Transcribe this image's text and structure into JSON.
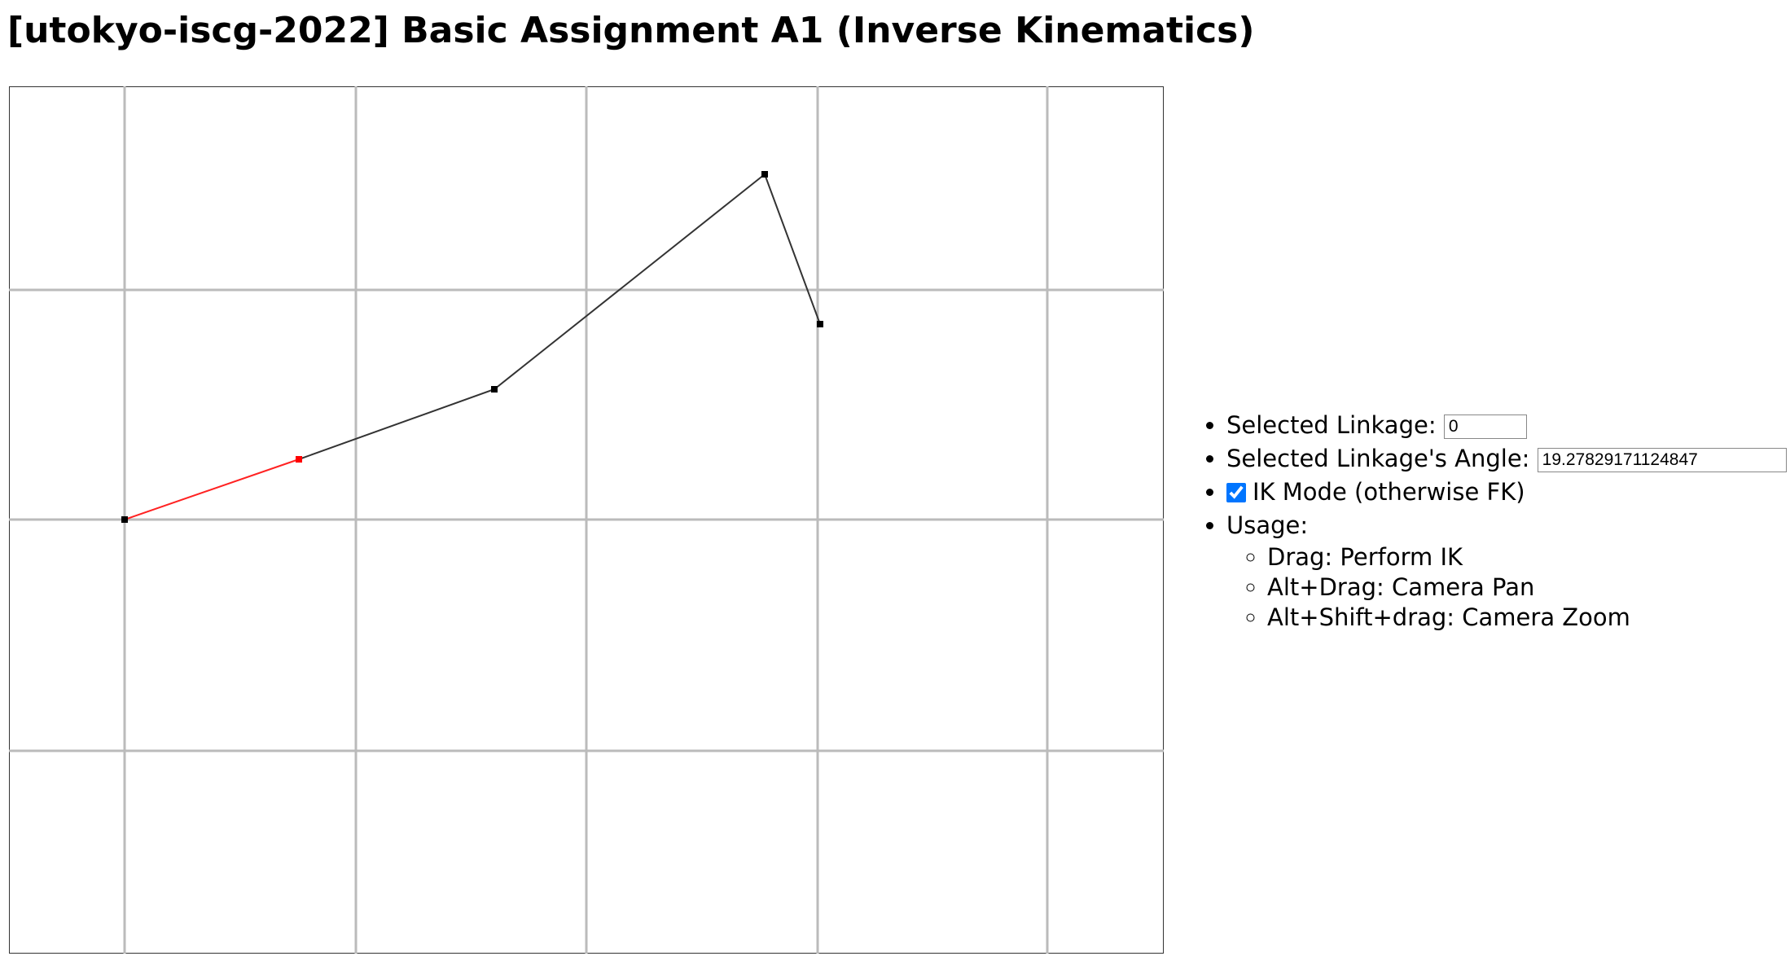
{
  "header": {
    "title": "[utokyo-iscg-2022] Basic Assignment A1 (Inverse Kinematics)"
  },
  "controls": {
    "selected_linkage": {
      "label": "Selected Linkage:",
      "value": "0"
    },
    "selected_angle": {
      "label": "Selected Linkage's Angle:",
      "value": "19.27829171124847"
    },
    "ik_mode": {
      "label": "IK Mode (otherwise FK)",
      "checked": true
    },
    "usage": {
      "label": "Usage:",
      "items": [
        "Drag: Perform IK",
        "Alt+Drag: Camera Pan",
        "Alt+Shift+drag: Camera Zoom"
      ]
    }
  }
}
